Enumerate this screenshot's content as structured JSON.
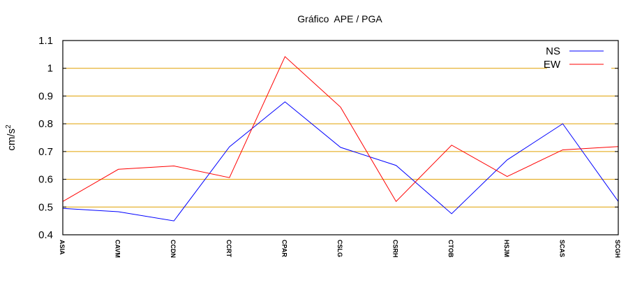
{
  "chart_data": {
    "type": "line",
    "title": "Gráfico  APE / PGA",
    "xlabel": "",
    "ylabel": "cm/s",
    "ylabel_superscript": "2",
    "categories": [
      "ASIA",
      "CAVM",
      "CCDN",
      "CCRT",
      "CPAR",
      "CSLG",
      "CSRH",
      "CTOB",
      "HSJM",
      "SCAS",
      "SCGH"
    ],
    "ylim": [
      0.4,
      1.1
    ],
    "yticks": [
      "0.4",
      "0.5",
      "0.6",
      "0.7",
      "0.8",
      "0.9",
      "1",
      "1.1"
    ],
    "grid_values": [
      0.5,
      0.6,
      0.7,
      0.8,
      0.9,
      1.0
    ],
    "legend_position": "top-right",
    "series": [
      {
        "name": "NS",
        "color": "#0000ff",
        "values": [
          0.495,
          0.483,
          0.45,
          0.717,
          0.879,
          0.715,
          0.65,
          0.476,
          0.67,
          0.8,
          0.52
        ]
      },
      {
        "name": "EW",
        "color": "#ff0000",
        "values": [
          0.52,
          0.636,
          0.648,
          0.606,
          1.042,
          0.86,
          0.52,
          0.723,
          0.61,
          0.706,
          0.718
        ]
      }
    ],
    "grid_color": "#e0a000"
  }
}
